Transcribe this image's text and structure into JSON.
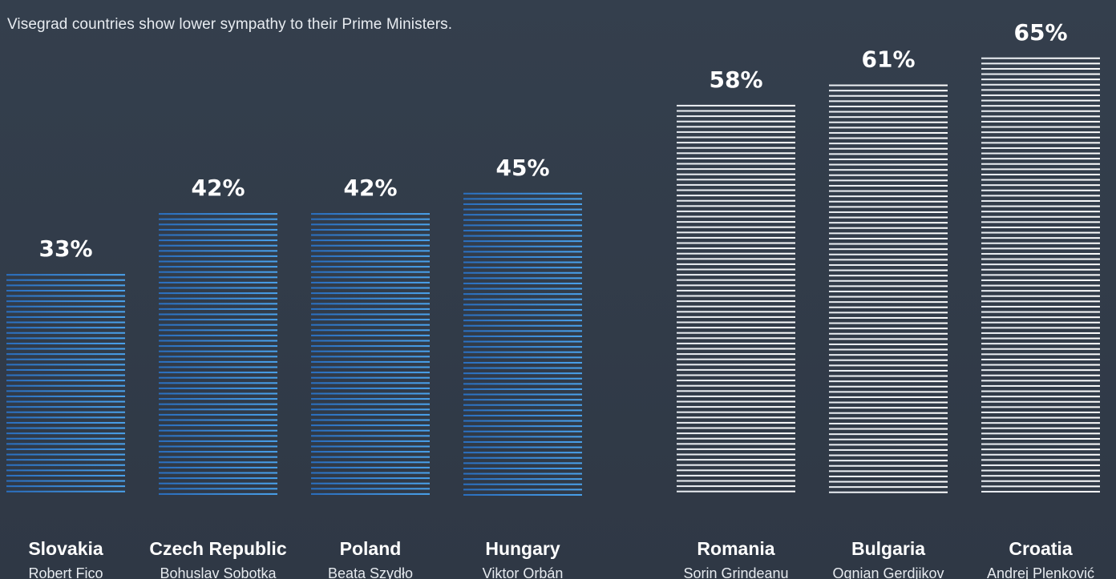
{
  "subtitle": "Visegrad countries show lower sympathy to their Prime Ministers.",
  "colors": {
    "background": "#333d4b",
    "visegrad_bar": "#3a8fdd",
    "other_bar": "#ffffff",
    "text": "#ffffff"
  },
  "chart_data": {
    "type": "bar",
    "title": "",
    "subtitle": "Visegrad countries show lower sympathy to their Prime Ministers.",
    "xlabel": "",
    "ylabel": "",
    "ylim": [
      0,
      65
    ],
    "grid": false,
    "legend": "none",
    "unit": "%",
    "groups": [
      {
        "color": "#3a8fdd",
        "bars": [
          {
            "country": "Slovakia",
            "pm": "Robert Fico",
            "value": 33,
            "label": "33%"
          },
          {
            "country": "Czech Republic",
            "pm": "Bohuslav Sobotka",
            "value": 42,
            "label": "42%"
          },
          {
            "country": "Poland",
            "pm": "Beata Szydło",
            "value": 42,
            "label": "42%"
          },
          {
            "country": "Hungary",
            "pm": "Viktor Orbán",
            "value": 45,
            "label": "45%"
          }
        ]
      },
      {
        "color": "#ffffff",
        "bars": [
          {
            "country": "Romania",
            "pm": "Sorin Grindeanu",
            "value": 58,
            "label": "58%"
          },
          {
            "country": "Bulgaria",
            "pm": "Ognian Gerdjikov",
            "value": 61,
            "label": "61%"
          },
          {
            "country": "Croatia",
            "pm": "Andrej Plenković",
            "value": 65,
            "label": "65%"
          }
        ]
      }
    ]
  }
}
